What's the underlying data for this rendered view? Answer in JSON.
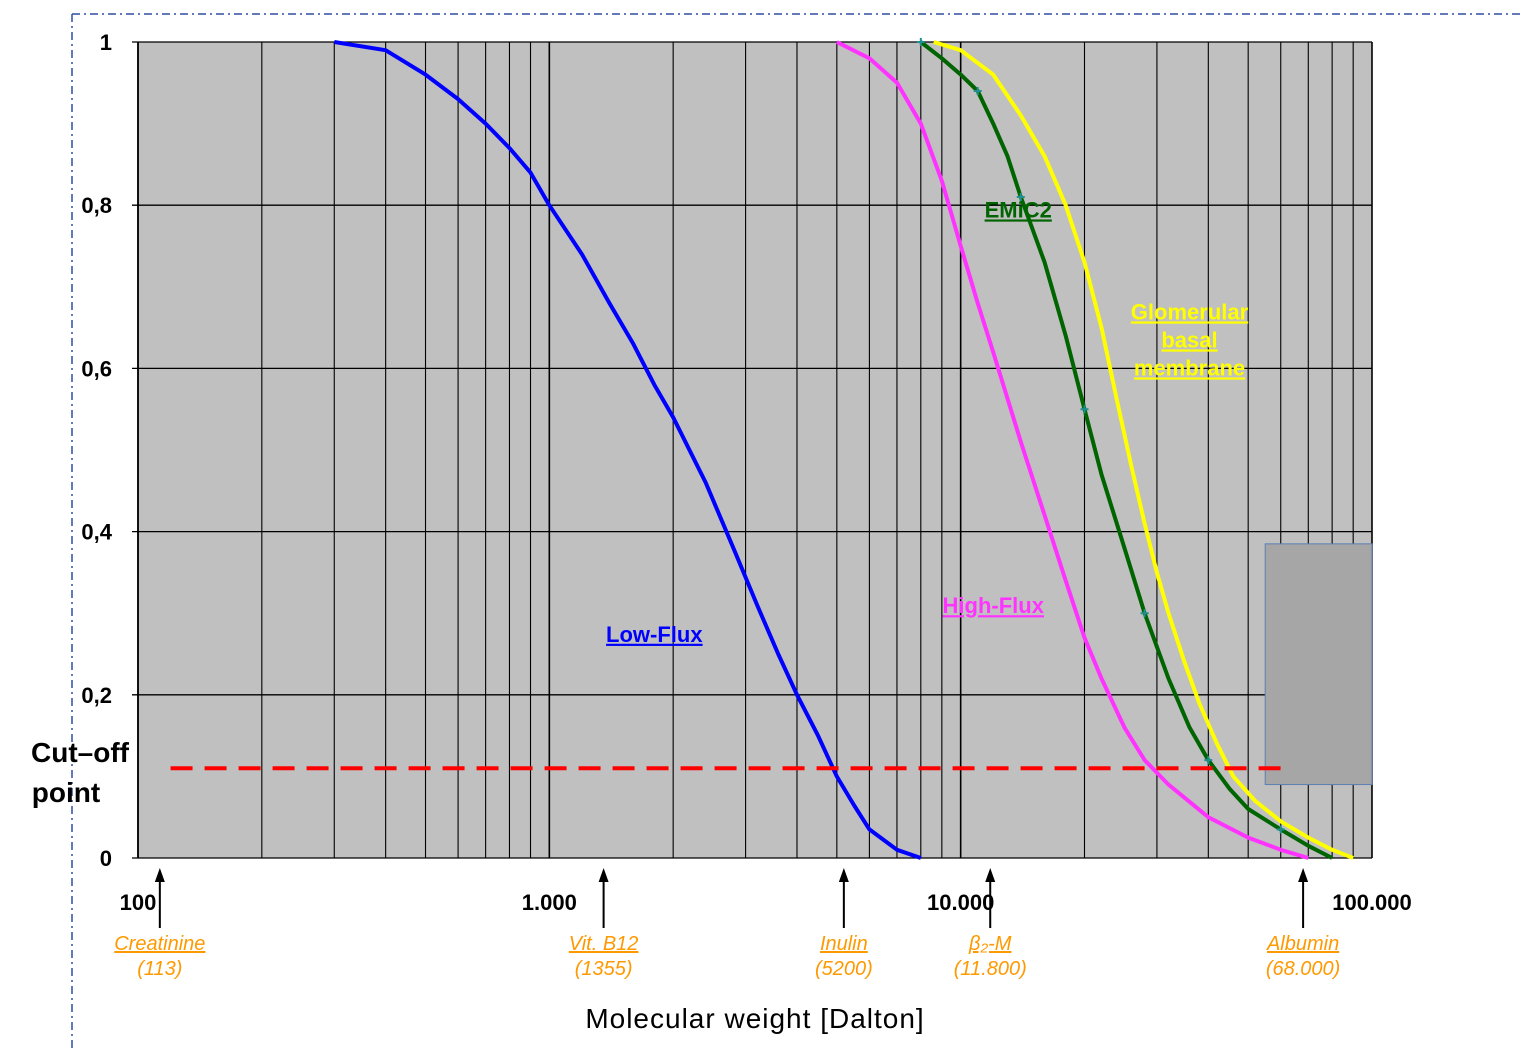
{
  "colors": {
    "plot_bg": "#c0c0c0",
    "grid": "#000000",
    "low_flux": "#0000ff",
    "high_flux": "#ff33ff",
    "emic2": "#006400",
    "gbm": "#ffff00",
    "cutoff": "#ff0000",
    "marker_label": "#ff9900",
    "overlay_box": "#a6a6a6",
    "overlay_box_border": "#5b7fb3",
    "frame_dash": "#2f4fa0"
  },
  "chart_data": {
    "type": "line",
    "xscale": "log",
    "xlim": [
      100,
      100000
    ],
    "ylim": [
      0,
      1
    ],
    "grid": true,
    "xlabel": "Molecular weight  [Dalton]",
    "ylabel": "",
    "x_ticks": [
      {
        "value": 100,
        "label": "100"
      },
      {
        "value": 1000,
        "label": "1.000"
      },
      {
        "value": 10000,
        "label": "10.000"
      },
      {
        "value": 100000,
        "label": "100.000"
      }
    ],
    "y_ticks": [
      {
        "value": 0,
        "label": "0"
      },
      {
        "value": 0.2,
        "label": "0,2"
      },
      {
        "value": 0.4,
        "label": "0,4"
      },
      {
        "value": 0.6,
        "label": "0,6"
      },
      {
        "value": 0.8,
        "label": "0,8"
      },
      {
        "value": 1,
        "label": "1"
      }
    ],
    "series": [
      {
        "name": "Low-Flux",
        "color_key": "low_flux",
        "markers": false,
        "points": [
          [
            300,
            1
          ],
          [
            400,
            0.99
          ],
          [
            500,
            0.96
          ],
          [
            600,
            0.93
          ],
          [
            700,
            0.9
          ],
          [
            800,
            0.87
          ],
          [
            900,
            0.84
          ],
          [
            1000,
            0.8
          ],
          [
            1200,
            0.74
          ],
          [
            1400,
            0.68
          ],
          [
            1600,
            0.63
          ],
          [
            1800,
            0.58
          ],
          [
            2000,
            0.54
          ],
          [
            2400,
            0.46
          ],
          [
            2800,
            0.38
          ],
          [
            3200,
            0.31
          ],
          [
            3600,
            0.25
          ],
          [
            4000,
            0.2
          ],
          [
            4500,
            0.15
          ],
          [
            5000,
            0.1
          ],
          [
            5500,
            0.065
          ],
          [
            6000,
            0.035
          ],
          [
            7000,
            0.01
          ],
          [
            8000,
            0
          ]
        ]
      },
      {
        "name": "High-Flux",
        "color_key": "high_flux",
        "markers": false,
        "points": [
          [
            5000,
            1
          ],
          [
            6000,
            0.98
          ],
          [
            7000,
            0.95
          ],
          [
            8000,
            0.9
          ],
          [
            9000,
            0.83
          ],
          [
            10000,
            0.75
          ],
          [
            11000,
            0.68
          ],
          [
            12000,
            0.62
          ],
          [
            14000,
            0.51
          ],
          [
            16000,
            0.42
          ],
          [
            18000,
            0.34
          ],
          [
            20000,
            0.27
          ],
          [
            22000,
            0.22
          ],
          [
            25000,
            0.16
          ],
          [
            28000,
            0.12
          ],
          [
            32000,
            0.09
          ],
          [
            40000,
            0.05
          ],
          [
            50000,
            0.025
          ],
          [
            60000,
            0.01
          ],
          [
            70000,
            0
          ]
        ]
      },
      {
        "name": "EMiC2",
        "color_key": "emic2",
        "markers": true,
        "points": [
          [
            8000,
            1
          ],
          [
            9000,
            0.98
          ],
          [
            10000,
            0.96
          ],
          [
            11000,
            0.94
          ],
          [
            12000,
            0.9
          ],
          [
            13000,
            0.86
          ],
          [
            14000,
            0.81
          ],
          [
            16000,
            0.73
          ],
          [
            18000,
            0.64
          ],
          [
            20000,
            0.55
          ],
          [
            22000,
            0.47
          ],
          [
            25000,
            0.38
          ],
          [
            28000,
            0.3
          ],
          [
            32000,
            0.22
          ],
          [
            36000,
            0.16
          ],
          [
            40000,
            0.12
          ],
          [
            45000,
            0.085
          ],
          [
            50000,
            0.06
          ],
          [
            60000,
            0.035
          ],
          [
            70000,
            0.015
          ],
          [
            80000,
            0
          ]
        ]
      },
      {
        "name": "Glomerular basal membrane",
        "color_key": "gbm",
        "markers": false,
        "points": [
          [
            8600,
            1
          ],
          [
            10000,
            0.99
          ],
          [
            12000,
            0.96
          ],
          [
            14000,
            0.91
          ],
          [
            16000,
            0.86
          ],
          [
            18000,
            0.8
          ],
          [
            20000,
            0.73
          ],
          [
            22000,
            0.65
          ],
          [
            24000,
            0.56
          ],
          [
            26000,
            0.48
          ],
          [
            28000,
            0.41
          ],
          [
            30000,
            0.35
          ],
          [
            32000,
            0.3
          ],
          [
            35000,
            0.24
          ],
          [
            38000,
            0.19
          ],
          [
            42000,
            0.14
          ],
          [
            46000,
            0.1
          ],
          [
            52000,
            0.07
          ],
          [
            60000,
            0.045
          ],
          [
            70000,
            0.025
          ],
          [
            80000,
            0.01
          ],
          [
            90000,
            0
          ]
        ]
      }
    ],
    "series_labels": [
      {
        "series": 0,
        "lines": [
          "Low-Flux"
        ],
        "x": 1800,
        "y": 0.265,
        "anchor": "middle",
        "color_key": "low_flux"
      },
      {
        "series": 1,
        "lines": [
          "High-Flux"
        ],
        "x": 12000,
        "y": 0.3,
        "anchor": "middle",
        "color_key": "high_flux"
      },
      {
        "series": 2,
        "lines": [
          "EMiC2"
        ],
        "x": 13800,
        "y": 0.785,
        "anchor": "middle",
        "color_key": "emic2"
      },
      {
        "series": 3,
        "lines": [
          "Glomerular",
          "basal",
          "membrane"
        ],
        "x": 36000,
        "y": 0.66,
        "anchor": "middle",
        "color_key": "gbm"
      }
    ],
    "markers": [
      {
        "value": 113,
        "name": "Creatinine",
        "mw": "(113)"
      },
      {
        "value": 1355,
        "name": "Vit. B12",
        "mw": "(1355)"
      },
      {
        "value": 5200,
        "name": "Inulin",
        "mw": "(5200)"
      },
      {
        "value": 11800,
        "name": "β₂-M",
        "mw": "(11.800)"
      },
      {
        "value": 68000,
        "name": "Albumin",
        "mw": "(68.000)"
      }
    ],
    "cutoff": {
      "y": 0.11,
      "x_from": 120,
      "x_to": 60000,
      "label_lines": [
        "Cut–off",
        "point"
      ]
    },
    "overlay_box": {
      "x_from": 55000,
      "x_to": 100000,
      "y_from": 0.09,
      "y_to": 0.385
    }
  }
}
